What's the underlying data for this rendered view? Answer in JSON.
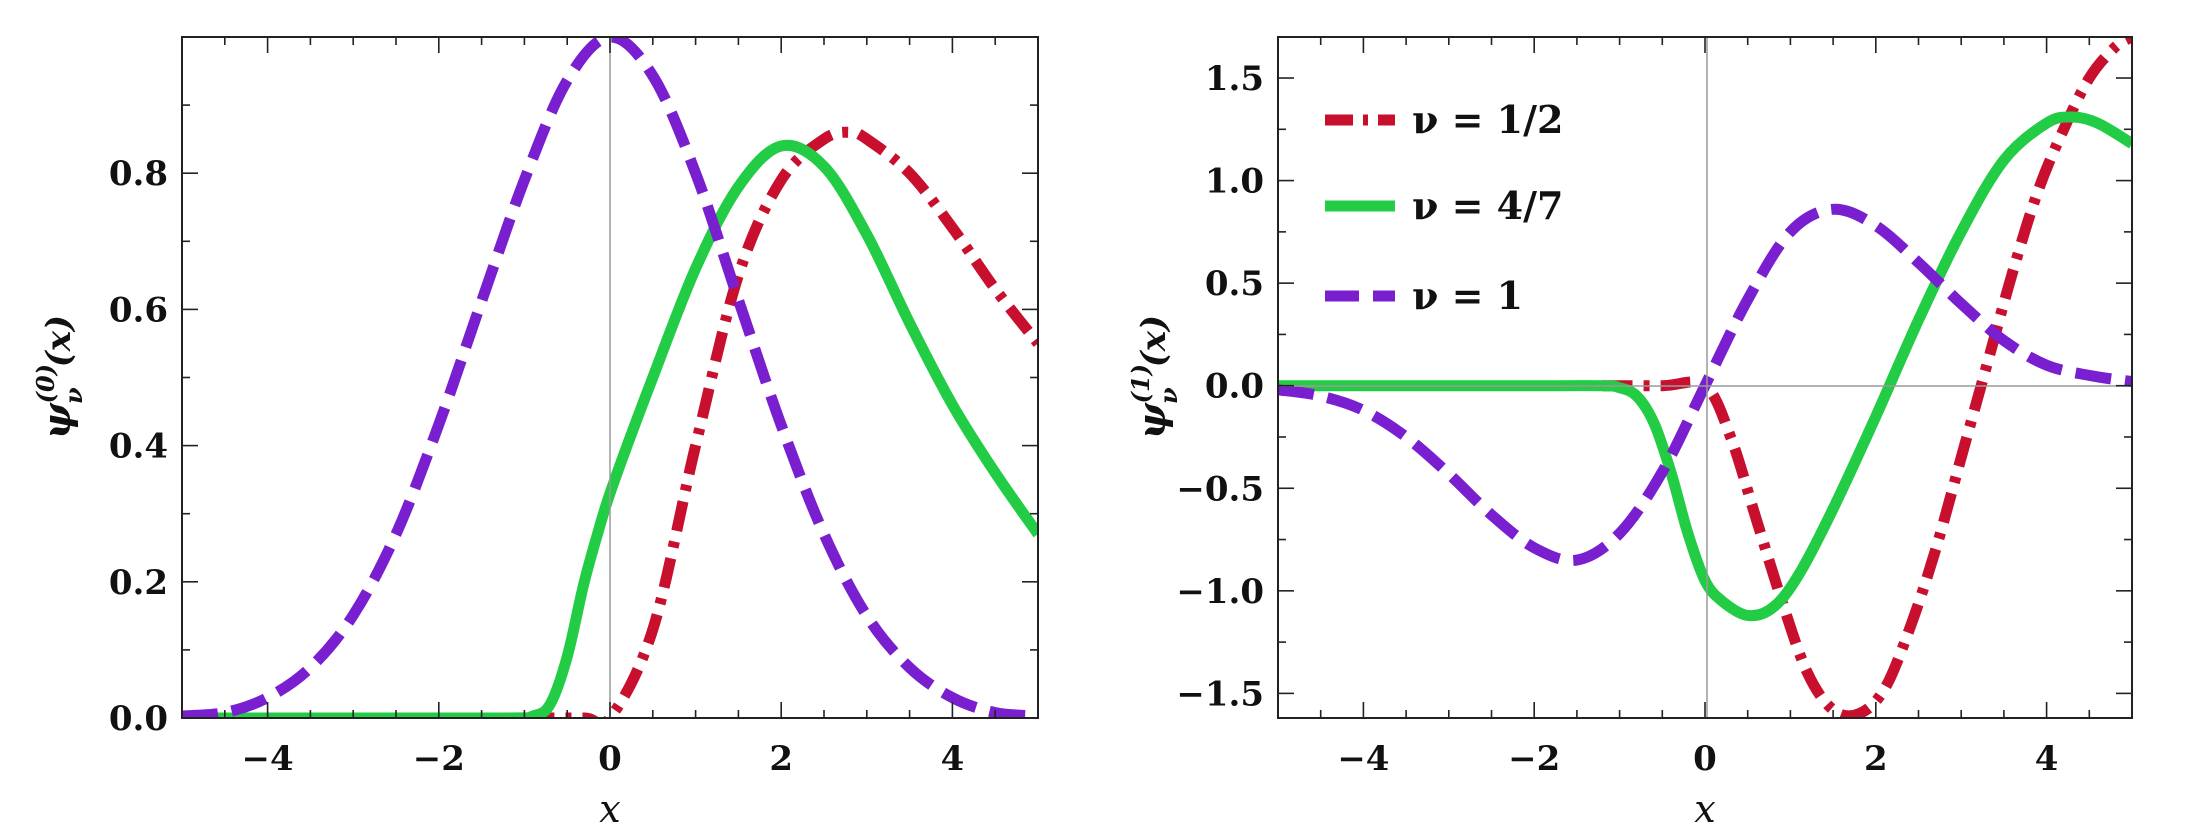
{
  "colors": {
    "red": "#c8102e",
    "green": "#22cc44",
    "purple": "#7a1fd0",
    "frame": "#222222",
    "zero_axis": "#9a9a9a"
  },
  "chart_data": [
    {
      "type": "line",
      "title": "",
      "xlabel": "x",
      "ylabel": {
        "base": "ψ",
        "sub": "ν",
        "sup": "(0)",
        "arg": "(x)"
      },
      "xlim": [
        -5,
        5
      ],
      "ylim": [
        0,
        1
      ],
      "xticks": [
        -4,
        -2,
        0,
        2,
        4
      ],
      "xtick_labels": [
        "−4",
        "−2",
        "0",
        "2",
        "4"
      ],
      "yticks": [
        0,
        0.2,
        0.4,
        0.6,
        0.8
      ],
      "ytick_labels": [
        "0.0",
        "0.2",
        "0.4",
        "0.6",
        "0.8"
      ],
      "grid": false,
      "series": [
        {
          "name": "ν = 1/2",
          "style": "dashdot",
          "color": "#c8102e",
          "x": [
            -1,
            -0.3,
            0,
            0.5,
            1,
            1.5,
            2,
            2.5,
            2.8,
            3,
            3.5,
            4,
            4.5,
            5
          ],
          "y": [
            0,
            0,
            0,
            0.13,
            0.4,
            0.65,
            0.79,
            0.85,
            0.86,
            0.85,
            0.8,
            0.72,
            0.63,
            0.55
          ]
        },
        {
          "name": "ν = 4/7",
          "style": "solid",
          "color": "#22cc44",
          "x": [
            -5,
            -3,
            -1.2,
            -0.9,
            -0.7,
            -0.5,
            -0.3,
            -0.1,
            0,
            0.2,
            0.5,
            1,
            1.5,
            2,
            2.5,
            3,
            3.5,
            4,
            4.5,
            5
          ],
          "y": [
            0,
            0,
            0,
            0.003,
            0.02,
            0.09,
            0.2,
            0.29,
            0.33,
            0.4,
            0.5,
            0.66,
            0.78,
            0.84,
            0.81,
            0.71,
            0.58,
            0.46,
            0.36,
            0.27
          ]
        },
        {
          "name": "ν = 1",
          "style": "dashed",
          "color": "#7a1fd0",
          "x": [
            -5,
            -4.5,
            -4,
            -3.5,
            -3,
            -2.5,
            -2,
            -1.5,
            -1,
            -0.5,
            0,
            0.5,
            1,
            1.5,
            2,
            2.5,
            3,
            3.5,
            4,
            4.5,
            5
          ],
          "y": [
            0.003,
            0.008,
            0.03,
            0.074,
            0.151,
            0.27,
            0.431,
            0.612,
            0.79,
            0.936,
            1.0,
            0.943,
            0.8,
            0.614,
            0.43,
            0.27,
            0.15,
            0.074,
            0.03,
            0.008,
            0.003
          ]
        }
      ]
    },
    {
      "type": "line",
      "title": "",
      "xlabel": "x",
      "ylabel": {
        "base": "ψ",
        "sub": "ν",
        "sup": "(1)",
        "arg": "(x)"
      },
      "xlim": [
        -5,
        5
      ],
      "ylim": [
        -1.62,
        1.7
      ],
      "xticks": [
        -4,
        -2,
        0,
        2,
        4
      ],
      "xtick_labels": [
        "−4",
        "−2",
        "0",
        "2",
        "4"
      ],
      "yticks": [
        1.5,
        1.0,
        0.5,
        0.0,
        -0.5,
        -1.0,
        -1.5
      ],
      "ytick_labels": [
        "1.5",
        "1.0",
        "0.5",
        "0.0",
        "−0.5",
        "−1.0",
        "−1.5"
      ],
      "grid": false,
      "series": [
        {
          "name": "ν = 1/2",
          "style": "dashdot",
          "color": "#c8102e",
          "x": [
            -1.2,
            -0.5,
            0,
            0.3,
            0.6,
            0.9,
            1.2,
            1.5,
            1.8,
            2.1,
            2.4,
            2.7,
            3.0,
            3.3,
            3.6,
            3.9,
            4.2,
            4.5,
            4.8,
            5
          ],
          "y": [
            0,
            0,
            0,
            -0.25,
            -0.65,
            -1.05,
            -1.4,
            -1.58,
            -1.6,
            -1.48,
            -1.18,
            -0.8,
            -0.35,
            0.1,
            0.55,
            0.95,
            1.25,
            1.5,
            1.65,
            1.7
          ]
        },
        {
          "name": "ν = 4/7",
          "style": "solid",
          "color": "#22cc44",
          "x": [
            -5,
            -2,
            -1.2,
            -1,
            -0.8,
            -0.6,
            -0.4,
            -0.2,
            0,
            0.2,
            0.5,
            0.8,
            1.1,
            1.5,
            2,
            2.5,
            3,
            3.5,
            4,
            4.3,
            4.6,
            5
          ],
          "y": [
            0,
            0,
            0,
            -0.01,
            -0.05,
            -0.18,
            -0.42,
            -0.72,
            -0.95,
            -1.05,
            -1.12,
            -1.08,
            -0.92,
            -0.6,
            -0.15,
            0.32,
            0.75,
            1.1,
            1.28,
            1.31,
            1.28,
            1.18
          ]
        },
        {
          "name": "ν = 1",
          "style": "dashed",
          "color": "#7a1fd0",
          "x": [
            -5,
            -4.5,
            -4,
            -3.5,
            -3,
            -2.5,
            -2,
            -1.5,
            -1,
            -0.5,
            0,
            0.5,
            1,
            1.5,
            2,
            2.5,
            3,
            3.5,
            4,
            4.5,
            5
          ],
          "y": [
            -0.02,
            -0.05,
            -0.12,
            -0.25,
            -0.43,
            -0.63,
            -0.79,
            -0.85,
            -0.72,
            -0.42,
            0.0,
            0.42,
            0.75,
            0.86,
            0.78,
            0.6,
            0.4,
            0.22,
            0.1,
            0.05,
            0.02
          ]
        }
      ],
      "legend": {
        "placement": "top-left",
        "entries": [
          "ν = 1/2",
          "ν = 4/7",
          "ν = 1"
        ]
      }
    }
  ]
}
